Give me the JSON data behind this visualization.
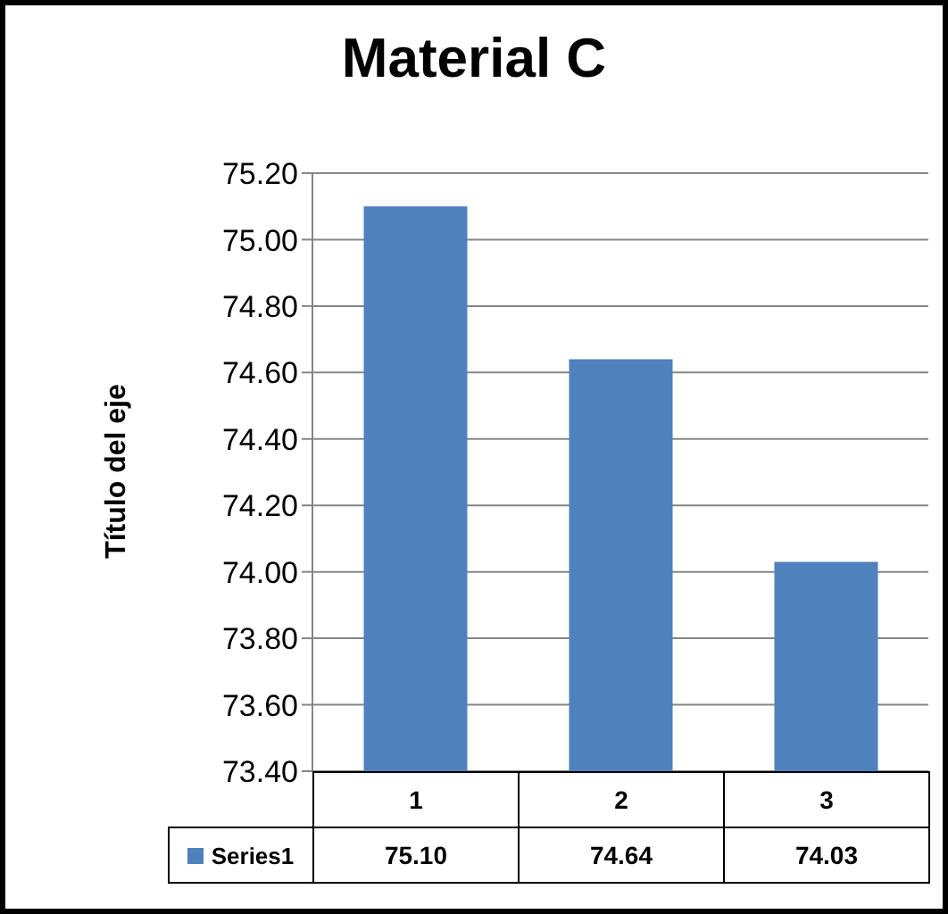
{
  "chart_data": {
    "type": "bar",
    "title": "Material C",
    "ylabel": "Título del eje",
    "categories": [
      "1",
      "2",
      "3"
    ],
    "series": [
      {
        "name": "Series1",
        "color": "#4f81bd",
        "values": [
          75.1,
          74.64,
          74.03
        ],
        "value_labels": [
          "75.10",
          "74.64",
          "74.03"
        ]
      }
    ],
    "ylim": [
      73.4,
      75.2
    ],
    "yticks": [
      {
        "value": 73.4,
        "label": "73.40"
      },
      {
        "value": 73.6,
        "label": "73.60"
      },
      {
        "value": 73.8,
        "label": "73.80"
      },
      {
        "value": 74.0,
        "label": "74.00"
      },
      {
        "value": 74.2,
        "label": "74.20"
      },
      {
        "value": 74.4,
        "label": "74.40"
      },
      {
        "value": 74.6,
        "label": "74.60"
      },
      {
        "value": 74.8,
        "label": "74.80"
      },
      {
        "value": 75.0,
        "label": "75.00"
      },
      {
        "value": 75.2,
        "label": "75.20"
      }
    ],
    "grid": "y",
    "legend": "bottom"
  }
}
